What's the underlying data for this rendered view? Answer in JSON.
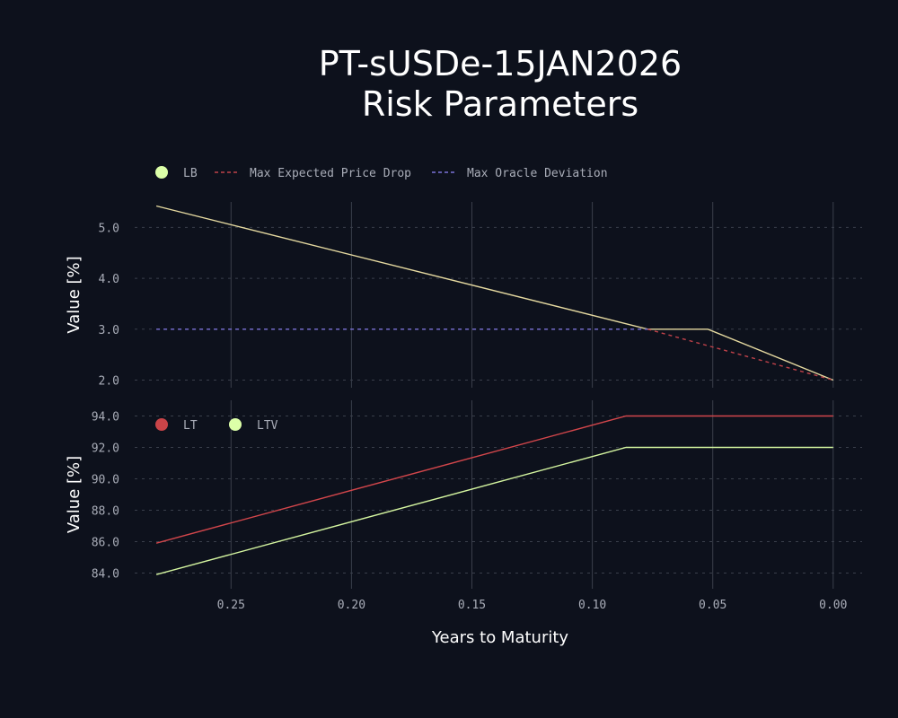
{
  "title_line1": "PT-sUSDe-15JAN2026",
  "title_line2": "Risk Parameters",
  "colors": {
    "background": "#0d111c",
    "grid_vertical": "#3a3f4b",
    "grid_horizontal": "#3a3f4b",
    "LB": "#e5d9a0",
    "max_expected_price_drop": "#c0424a",
    "max_oracle_deviation": "#7b72d8",
    "LT": "#d2464b",
    "LTV": "#d4f5a0",
    "legend_LB": "#dcffa8",
    "legend_LT": "#c94448",
    "legend_LTV": "#dcffa8"
  },
  "chart_data": [
    {
      "type": "line",
      "xlabel": "Years to Maturity",
      "ylabel": "Value [%]",
      "x_inverted": true,
      "xlim": [
        0.29,
        -0.012
      ],
      "ylim": [
        1.85,
        5.5
      ],
      "yticks": [
        2.0,
        3.0,
        4.0,
        5.0
      ],
      "xticks": [
        0.25,
        0.2,
        0.15,
        0.1,
        0.05,
        0.0
      ],
      "grid": "vertical solid, horizontal dashed",
      "legend_position": "top-left",
      "series": [
        {
          "name": "LB",
          "style": "solid",
          "legend_marker": "dot",
          "points": [
            [
              0.281,
              5.42
            ],
            [
              0.077,
              3.0
            ],
            [
              0.052,
              3.0
            ],
            [
              0.0,
              2.0
            ]
          ]
        },
        {
          "name": "Max Expected Price Drop",
          "style": "dashed",
          "legend_marker": "dash",
          "points": [
            [
              0.077,
              3.0
            ],
            [
              0.0,
              2.0
            ]
          ]
        },
        {
          "name": "Max Oracle Deviation",
          "style": "dashed",
          "legend_marker": "dash",
          "points": [
            [
              0.281,
              3.0
            ],
            [
              0.077,
              3.0
            ]
          ]
        }
      ]
    },
    {
      "type": "line",
      "xlabel": "Years to Maturity",
      "ylabel": "Value [%]",
      "x_inverted": true,
      "xlim": [
        0.29,
        -0.012
      ],
      "ylim": [
        83.0,
        95.0
      ],
      "yticks": [
        84.0,
        86.0,
        88.0,
        90.0,
        92.0,
        94.0
      ],
      "xticks": [
        0.25,
        0.2,
        0.15,
        0.1,
        0.05,
        0.0
      ],
      "grid": "vertical solid, horizontal dashed",
      "legend_position": "top-left",
      "series": [
        {
          "name": "LT",
          "style": "solid",
          "legend_marker": "dot",
          "points": [
            [
              0.281,
              85.9
            ],
            [
              0.086,
              94.0
            ],
            [
              0.0,
              94.0
            ]
          ]
        },
        {
          "name": "LTV",
          "style": "solid",
          "legend_marker": "dot",
          "points": [
            [
              0.281,
              83.9
            ],
            [
              0.086,
              92.0
            ],
            [
              0.0,
              92.0
            ]
          ]
        }
      ]
    }
  ]
}
